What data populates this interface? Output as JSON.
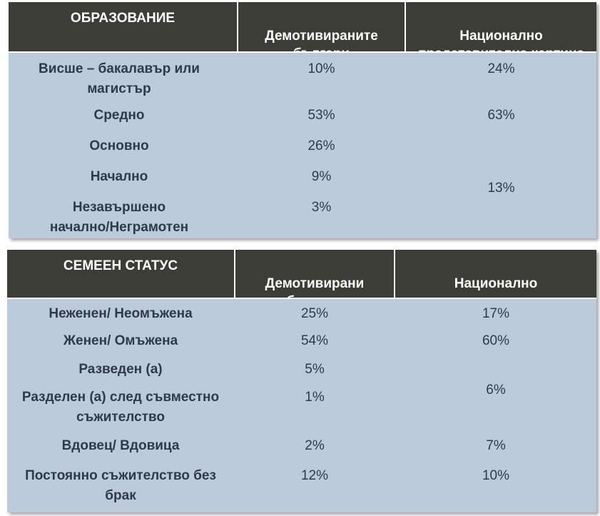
{
  "education": {
    "headers": [
      "ОБРАЗОВАНИЕ",
      "Демотивираните\nбългари",
      "Национално\nпредставителна картина"
    ],
    "rows": [
      {
        "label": "Висше – бакалавър или\nмагистър",
        "demotivated": "10%",
        "national": "24%"
      },
      {
        "label": "Средно",
        "demotivated": "53%",
        "national": "63%"
      },
      {
        "label": "Основно",
        "demotivated": "26%",
        "national": ""
      },
      {
        "label": "Начално",
        "demotivated": "9%",
        "national": "13%"
      },
      {
        "label": "Незавършено\nначално/Неграмотен",
        "demotivated": "3%",
        "national": ""
      }
    ]
  },
  "family": {
    "headers": [
      "СЕМЕЕН СТАТУС",
      "Демотивирани\nбългари",
      "Национално\nпредставителна картина"
    ],
    "rows": [
      {
        "label": "Неженен/ Неомъжена",
        "demotivated": "25%",
        "national": "17%"
      },
      {
        "label": "Женен/ Омъжена",
        "demotivated": "54%",
        "national": "60%"
      },
      {
        "label": "Разведен (а)",
        "demotivated": "5%",
        "national": "6%"
      },
      {
        "label": "Разделен (а) след съвместно\nсъжителство",
        "demotivated": "1%",
        "national": ""
      },
      {
        "label": "Вдовец/ Вдовица",
        "demotivated": "2%",
        "national": "7%"
      },
      {
        "label": "Постоянно съжителство без\nбрак",
        "demotivated": "12%",
        "national": "10%"
      }
    ]
  }
}
